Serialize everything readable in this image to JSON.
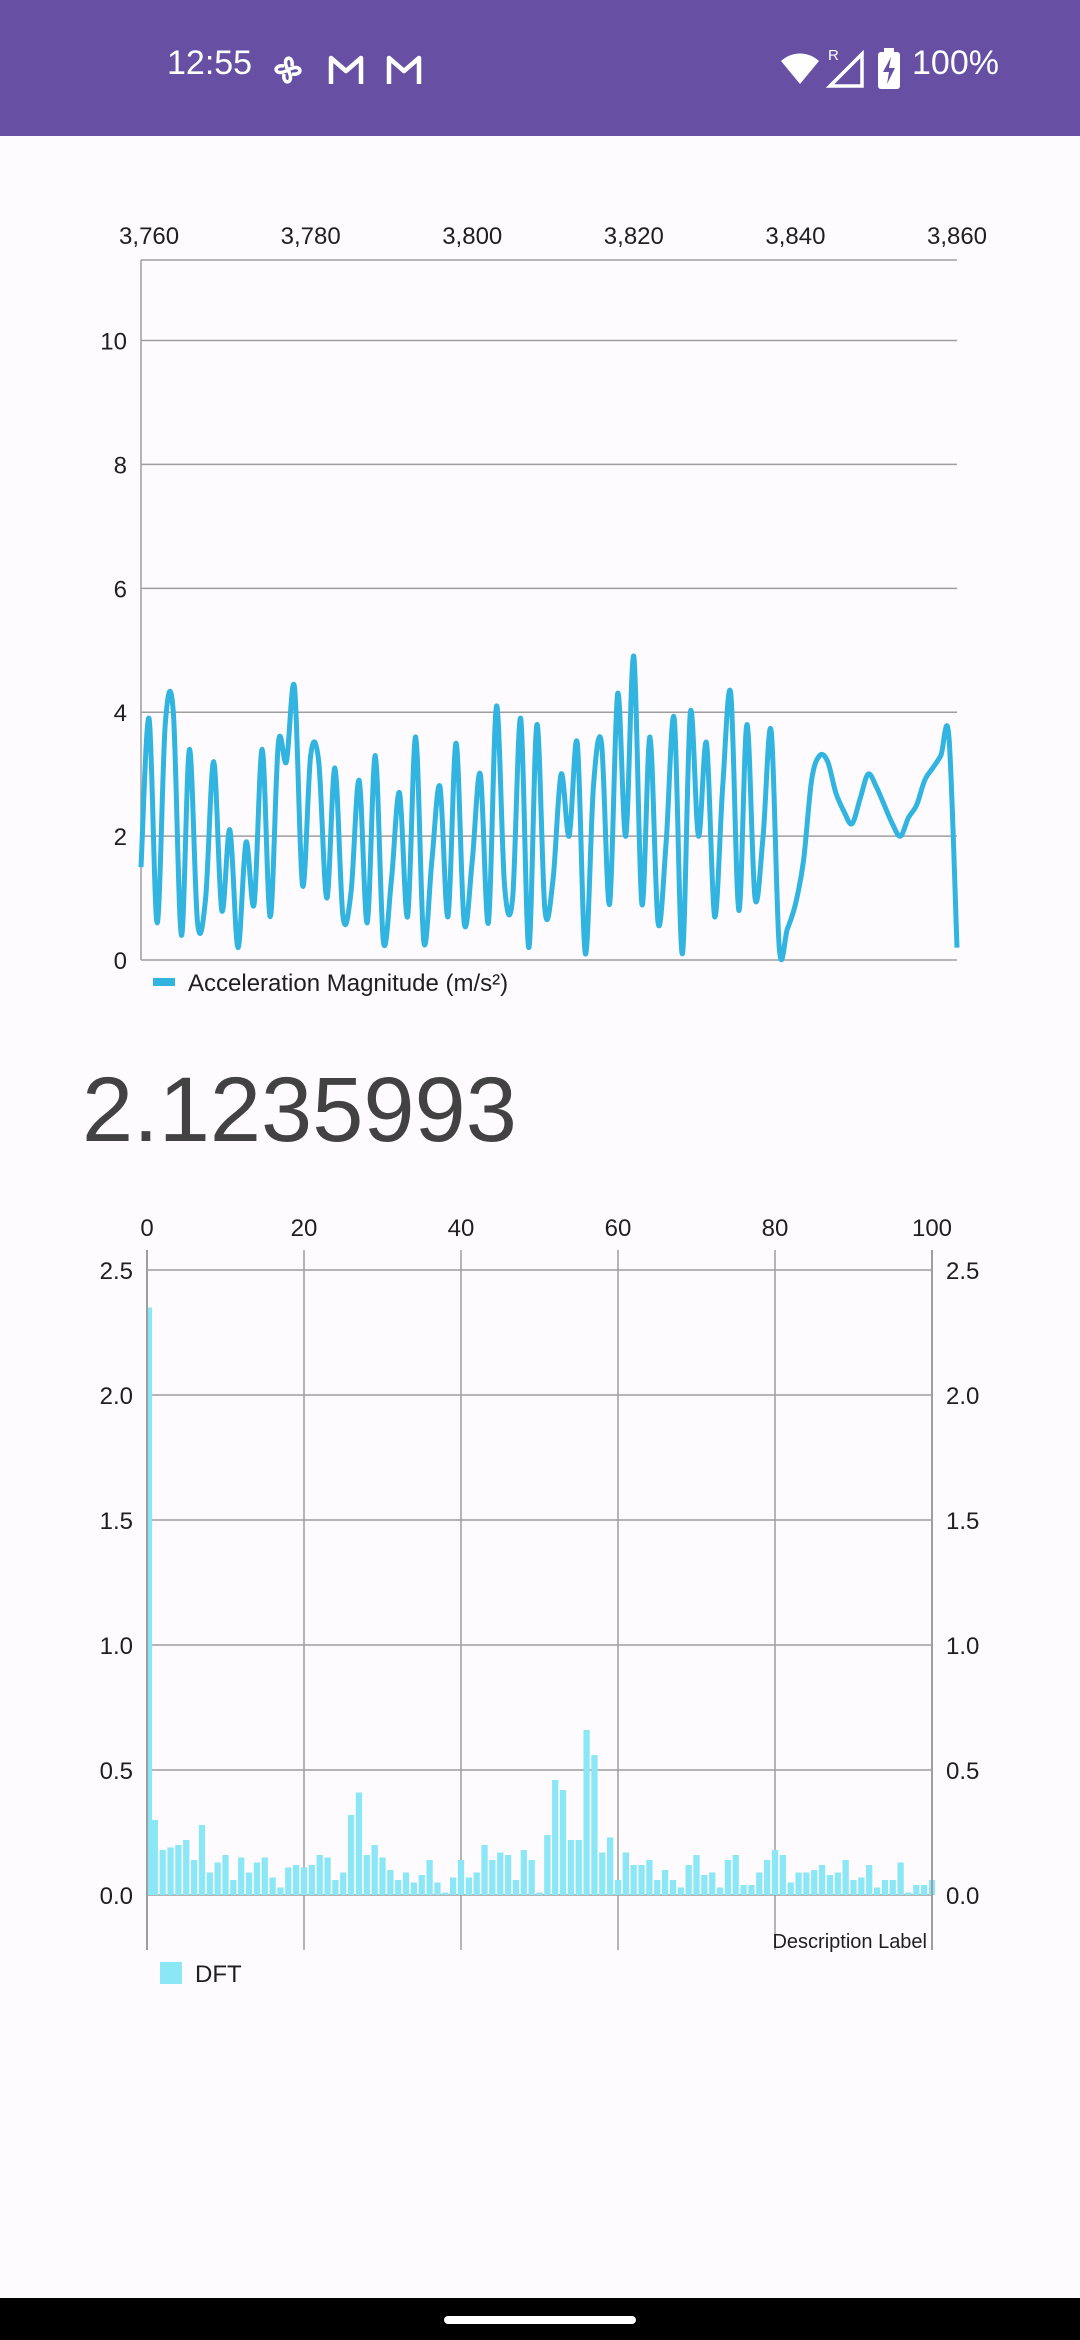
{
  "status_bar": {
    "time": "12:55",
    "battery": "100%",
    "notification_icons": [
      "pinwheel-icon",
      "gmail-icon",
      "gmail-icon"
    ],
    "system_icons": [
      "wifi-icon",
      "signal-roaming-icon",
      "battery-charging-icon"
    ],
    "background": "#6750a4"
  },
  "readout": {
    "value": "2.1235993"
  },
  "chart_data": [
    {
      "type": "line",
      "title": "",
      "legend": [
        {
          "label": "Acceleration Magnitude (m/s²)",
          "color": "#32b4e0"
        }
      ],
      "legend_position": "bottom-left",
      "x_axis_position": "top",
      "x_ticks": [
        "3,760",
        "3,780",
        "3,800",
        "3,820",
        "3,840",
        "3,860"
      ],
      "x_tick_values": [
        3760,
        3780,
        3800,
        3820,
        3840,
        3860
      ],
      "xlim": [
        3759,
        3860
      ],
      "y_ticks": [
        "0",
        "2",
        "4",
        "6",
        "8",
        "10"
      ],
      "y_tick_values": [
        0,
        2,
        4,
        6,
        8,
        10
      ],
      "ylim": [
        0,
        11.3
      ],
      "grid": "horizontal",
      "series": [
        {
          "name": "Acceleration Magnitude (m/s²)",
          "color": "#32b4e0",
          "x": [
            3759,
            3760,
            3761,
            3762,
            3763,
            3764,
            3765,
            3766,
            3767,
            3768,
            3769,
            3770,
            3771,
            3772,
            3773,
            3774,
            3775,
            3776,
            3777,
            3778,
            3779,
            3780,
            3781,
            3782,
            3783,
            3784,
            3785,
            3786,
            3787,
            3788,
            3789,
            3790,
            3791,
            3792,
            3793,
            3794,
            3795,
            3796,
            3797,
            3798,
            3799,
            3800,
            3801,
            3802,
            3803,
            3804,
            3805,
            3806,
            3807,
            3808,
            3809,
            3810,
            3811,
            3812,
            3813,
            3814,
            3815,
            3816,
            3817,
            3818,
            3819,
            3820,
            3821,
            3822,
            3823,
            3824,
            3825,
            3826,
            3827,
            3828,
            3829,
            3830,
            3831,
            3832,
            3833,
            3834,
            3835,
            3836,
            3837,
            3838,
            3839,
            3840,
            3841,
            3842,
            3843,
            3844,
            3845,
            3846,
            3847,
            3848,
            3849,
            3850,
            3851,
            3852,
            3853,
            3854,
            3855,
            3856,
            3857,
            3858,
            3859,
            3860
          ],
          "y": [
            1.5,
            3.9,
            0.6,
            3.8,
            4.0,
            0.4,
            3.4,
            0.6,
            1.0,
            3.2,
            0.8,
            2.1,
            0.2,
            1.9,
            0.9,
            3.4,
            0.7,
            3.5,
            3.2,
            4.4,
            1.2,
            3.3,
            3.2,
            1.0,
            3.1,
            0.7,
            1.1,
            2.9,
            0.6,
            3.3,
            0.3,
            1.3,
            2.7,
            0.7,
            3.6,
            0.3,
            1.6,
            2.8,
            0.7,
            3.5,
            0.6,
            1.6,
            3.0,
            0.6,
            4.1,
            1.2,
            1.0,
            3.9,
            0.2,
            3.8,
            0.8,
            1.3,
            3.0,
            2.0,
            3.5,
            0.1,
            2.8,
            3.5,
            0.9,
            4.3,
            2.0,
            4.9,
            0.9,
            3.6,
            0.6,
            1.9,
            3.9,
            0.1,
            4.0,
            2.0,
            3.5,
            0.7,
            2.8,
            4.3,
            0.8,
            3.8,
            1.0,
            2.0,
            3.7,
            0.2,
            0.5,
            0.9,
            1.6,
            2.9,
            3.3,
            3.2,
            2.7,
            2.4,
            2.2,
            2.6,
            3.0,
            2.8,
            2.5,
            2.2,
            2.0,
            2.3,
            2.5,
            2.9,
            3.1,
            3.3,
            3.6,
            0.2
          ]
        }
      ]
    },
    {
      "type": "bar",
      "title": "",
      "description_label": "Description Label",
      "legend": [
        {
          "label": "DFT",
          "color": "#8be6f6"
        }
      ],
      "legend_position": "bottom-left",
      "x_axis_position": "top",
      "x_ticks": [
        "0",
        "20",
        "40",
        "60",
        "80",
        "100"
      ],
      "x_tick_values": [
        0,
        20,
        40,
        60,
        80,
        100
      ],
      "xlim": [
        0,
        100
      ],
      "y_ticks": [
        "0.0",
        "0.5",
        "1.0",
        "1.5",
        "2.0",
        "2.5"
      ],
      "y_tick_values": [
        0,
        0.5,
        1.0,
        1.5,
        2.0,
        2.5
      ],
      "ylim": [
        0,
        2.5
      ],
      "y_axis": "left-and-right",
      "grid": "both",
      "series": [
        {
          "name": "DFT",
          "color": "#8be6f6",
          "x": [
            0,
            1,
            2,
            3,
            4,
            5,
            6,
            7,
            8,
            9,
            10,
            11,
            12,
            13,
            14,
            15,
            16,
            17,
            18,
            19,
            20,
            21,
            22,
            23,
            24,
            25,
            26,
            27,
            28,
            29,
            30,
            31,
            32,
            33,
            34,
            35,
            36,
            37,
            38,
            39,
            40,
            41,
            42,
            43,
            44,
            45,
            46,
            47,
            48,
            49,
            50,
            51,
            52,
            53,
            54,
            55,
            56,
            57,
            58,
            59,
            60,
            61,
            62,
            63,
            64,
            65,
            66,
            67,
            68,
            69,
            70,
            71,
            72,
            73,
            74,
            75,
            76,
            77,
            78,
            79,
            80,
            81,
            82,
            83,
            84,
            85,
            86,
            87,
            88,
            89,
            90,
            91,
            92,
            93,
            94,
            95,
            96,
            97,
            98,
            99,
            100
          ],
          "values": [
            2.35,
            0.3,
            0.18,
            0.19,
            0.2,
            0.22,
            0.14,
            0.28,
            0.09,
            0.13,
            0.16,
            0.06,
            0.15,
            0.09,
            0.13,
            0.15,
            0.07,
            0.03,
            0.11,
            0.12,
            0.11,
            0.12,
            0.16,
            0.15,
            0.06,
            0.09,
            0.32,
            0.41,
            0.16,
            0.2,
            0.15,
            0.1,
            0.06,
            0.09,
            0.05,
            0.08,
            0.14,
            0.05,
            0.01,
            0.07,
            0.14,
            0.07,
            0.09,
            0.2,
            0.14,
            0.17,
            0.16,
            0.06,
            0.18,
            0.14,
            0.01,
            0.24,
            0.46,
            0.42,
            0.22,
            0.22,
            0.66,
            0.56,
            0.17,
            0.23,
            0.06,
            0.17,
            0.12,
            0.12,
            0.14,
            0.06,
            0.1,
            0.06,
            0.03,
            0.12,
            0.16,
            0.08,
            0.09,
            0.03,
            0.14,
            0.16,
            0.04,
            0.04,
            0.09,
            0.14,
            0.18,
            0.16,
            0.05,
            0.09,
            0.09,
            0.1,
            0.12,
            0.08,
            0.09,
            0.14,
            0.06,
            0.07,
            0.12,
            0.03,
            0.06,
            0.06,
            0.13,
            0.01,
            0.04,
            0.04,
            0.06
          ]
        }
      ]
    }
  ]
}
